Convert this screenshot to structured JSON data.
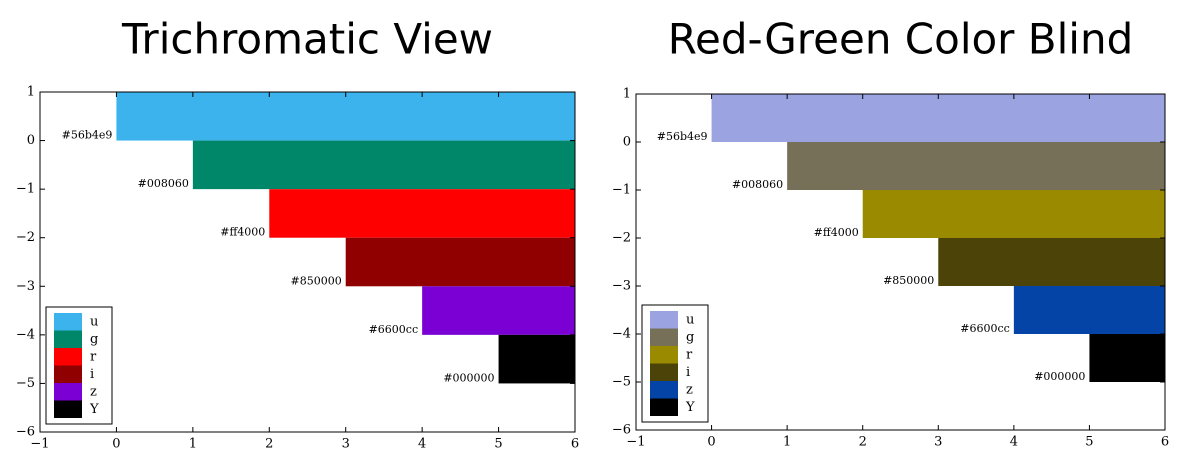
{
  "chart_data": [
    {
      "type": "bar",
      "title": "Trichromatic View",
      "legend": "lower left",
      "bars": [
        {
          "name": "u",
          "label": "#56b4e9",
          "color": "#3db3ee",
          "x": [
            0,
            6
          ],
          "y": [
            0,
            1
          ]
        },
        {
          "name": "g",
          "label": "#008060",
          "color": "#00876a",
          "x": [
            1,
            6
          ],
          "y": [
            -1,
            0
          ]
        },
        {
          "name": "r",
          "label": "#ff4000",
          "color": "#ff0000",
          "x": [
            2,
            6
          ],
          "y": [
            -2,
            -1
          ]
        },
        {
          "name": "i",
          "label": "#850000",
          "color": "#900000",
          "x": [
            3,
            6
          ],
          "y": [
            -3,
            -2
          ]
        },
        {
          "name": "z",
          "label": "#6600cc",
          "color": "#7a00d4",
          "x": [
            4,
            6
          ],
          "y": [
            -4,
            -3
          ]
        },
        {
          "name": "Y",
          "label": "#000000",
          "color": "#000000",
          "x": [
            5,
            6
          ],
          "y": [
            -5,
            -4
          ]
        }
      ],
      "xlim": [
        -1,
        6
      ],
      "xticks": [
        {
          "value": -1,
          "label": "−1"
        },
        0,
        1,
        2,
        3,
        4,
        5,
        6
      ],
      "ylim": [
        -6,
        1
      ],
      "yticks": [
        1,
        0,
        {
          "value": -1,
          "label": "−1"
        },
        {
          "value": -2,
          "label": "−2"
        },
        {
          "value": -3,
          "label": "−3"
        },
        {
          "value": -4,
          "label": "−4"
        },
        {
          "value": -5,
          "label": "−5"
        },
        {
          "value": -6,
          "label": "−6"
        }
      ]
    },
    {
      "type": "bar",
      "title": "Red-Green Color Blind",
      "legend": "lower left",
      "bars": [
        {
          "name": "u",
          "label": "#56b4e9",
          "color": "#9ba3e0",
          "x": [
            0,
            6
          ],
          "y": [
            0,
            1
          ]
        },
        {
          "name": "g",
          "label": "#008060",
          "color": "#777058",
          "x": [
            1,
            6
          ],
          "y": [
            -1,
            0
          ]
        },
        {
          "name": "r",
          "label": "#ff4000",
          "color": "#9a8a00",
          "x": [
            2,
            6
          ],
          "y": [
            -2,
            -1
          ]
        },
        {
          "name": "i",
          "label": "#850000",
          "color": "#4c4309",
          "x": [
            3,
            6
          ],
          "y": [
            -3,
            -2
          ]
        },
        {
          "name": "z",
          "label": "#6600cc",
          "color": "#0344a6",
          "x": [
            4,
            6
          ],
          "y": [
            -4,
            -3
          ]
        },
        {
          "name": "Y",
          "label": "#000000",
          "color": "#000000",
          "x": [
            5,
            6
          ],
          "y": [
            -5,
            -4
          ]
        }
      ],
      "xlim": [
        -1,
        6
      ],
      "xticks": [
        {
          "value": -1,
          "label": "−1"
        },
        0,
        1,
        2,
        3,
        4,
        5,
        6
      ],
      "ylim": [
        -6,
        1
      ],
      "yticks": [
        1,
        0,
        {
          "value": -1,
          "label": "−1"
        },
        {
          "value": -2,
          "label": "−2"
        },
        {
          "value": -3,
          "label": "−3"
        },
        {
          "value": -4,
          "label": "−4"
        },
        {
          "value": -5,
          "label": "−5"
        },
        {
          "value": -6,
          "label": "−6"
        }
      ]
    }
  ]
}
